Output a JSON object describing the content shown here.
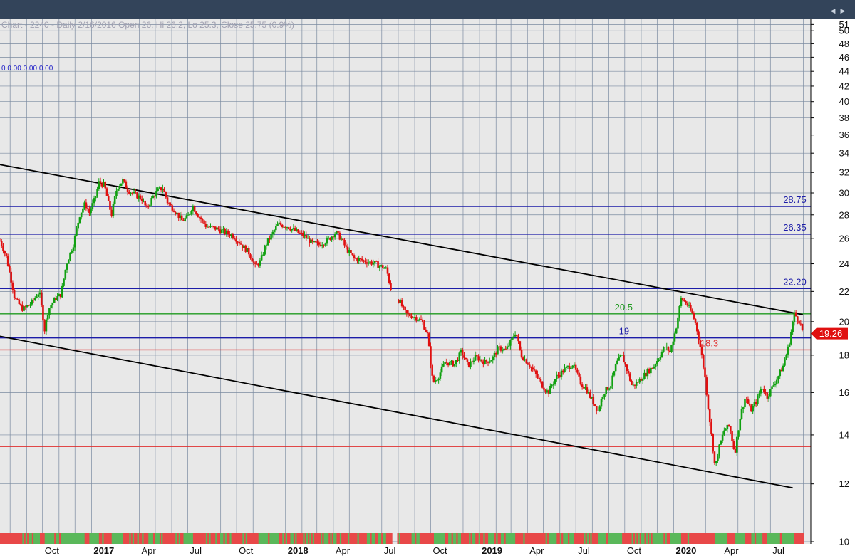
{
  "header": {
    "chart_info": "Chart - 2240 - Daily 2/16/2016 Open 26, Hi 26.2, Lo 25.3, Close 25.75 (0.9%)",
    "study_values": "0.0.00.0.00.0.00"
  },
  "colors": {
    "topbar": "#33445a",
    "plot_bg": "#e8e8e8",
    "grid": "#7a8aa0",
    "up": "#10a010",
    "down": "#e01010",
    "level_blue": "#1c1ca8",
    "level_green": "#1f9a1f",
    "level_red": "#e03030",
    "trend": "#000000"
  },
  "chart_data": {
    "type": "candlestick",
    "title": "",
    "y_scale": "log",
    "ylim": [
      10,
      51.5
    ],
    "y_ticks": [
      10,
      12,
      14,
      16,
      18,
      20,
      22,
      24,
      26,
      28,
      30,
      32,
      34,
      36,
      38,
      40,
      42,
      44,
      46,
      48,
      50,
      51
    ],
    "x_ticks": [
      {
        "label": "Oct",
        "date": "2016-10-01",
        "bold": false
      },
      {
        "label": "2017",
        "date": "2017-01-01",
        "bold": true
      },
      {
        "label": "Apr",
        "date": "2017-04-01",
        "bold": false
      },
      {
        "label": "Jul",
        "date": "2017-07-01",
        "bold": false
      },
      {
        "label": "Oct",
        "date": "2017-10-01",
        "bold": false
      },
      {
        "label": "2018",
        "date": "2018-01-01",
        "bold": true
      },
      {
        "label": "Apr",
        "date": "2018-04-01",
        "bold": false
      },
      {
        "label": "Jul",
        "date": "2018-07-01",
        "bold": false
      },
      {
        "label": "Oct",
        "date": "2018-10-01",
        "bold": false
      },
      {
        "label": "2019",
        "date": "2019-01-01",
        "bold": true
      },
      {
        "label": "Apr",
        "date": "2019-04-01",
        "bold": false
      },
      {
        "label": "Jul",
        "date": "2019-07-01",
        "bold": false
      },
      {
        "label": "Oct",
        "date": "2019-10-01",
        "bold": false
      },
      {
        "label": "2020",
        "date": "2020-01-01",
        "bold": true
      },
      {
        "label": "Apr",
        "date": "2020-04-01",
        "bold": false
      },
      {
        "label": "Jul",
        "date": "2020-07-01",
        "bold": false
      }
    ],
    "x_range": [
      "2016-07-13",
      "2020-09-15"
    ],
    "last_price": {
      "value": 19.26,
      "label": "19.26"
    },
    "levels": [
      {
        "value": 28.75,
        "label": "28.75",
        "color": "#1c1ca8",
        "label_date": "2020-07-25"
      },
      {
        "value": 26.35,
        "label": "26.35",
        "color": "#1c1ca8",
        "label_date": "2020-07-25"
      },
      {
        "value": 22.2,
        "label": "22.20",
        "color": "#1c1ca8",
        "label_date": "2020-07-25"
      },
      {
        "value": 20.5,
        "label": "20.5",
        "color": "#1f9a1f",
        "label_date": "2019-09-12"
      },
      {
        "value": 19.0,
        "label": "19",
        "color": "#1c1ca8",
        "label_date": "2019-09-20"
      },
      {
        "value": 18.3,
        "label": "18.3",
        "color": "#e03030",
        "label_date": "2020-02-20"
      },
      {
        "value": 13.5,
        "label": "",
        "color": "#e03030",
        "label_date": "2020-07-25"
      }
    ],
    "trendlines": [
      {
        "name": "upper",
        "from": {
          "date": "2016-07-13",
          "value": 32.8
        },
        "to": {
          "date": "2020-08-31",
          "value": 20.45
        }
      },
      {
        "name": "lower",
        "from": {
          "date": "2016-07-13",
          "value": 19.1
        },
        "to": {
          "date": "2020-08-12",
          "value": 11.85
        }
      }
    ],
    "price_path": [
      [
        "2016-07-13",
        25.8
      ],
      [
        "2016-07-25",
        24.5
      ],
      [
        "2016-08-10",
        21.5
      ],
      [
        "2016-08-25",
        20.8
      ],
      [
        "2016-09-10",
        21.2
      ],
      [
        "2016-09-25",
        22.0
      ],
      [
        "2016-10-05",
        19.5
      ],
      [
        "2016-10-12",
        20.8
      ],
      [
        "2016-10-25",
        21.5
      ],
      [
        "2016-11-05",
        21.8
      ],
      [
        "2016-11-15",
        24.0
      ],
      [
        "2016-11-28",
        25.5
      ],
      [
        "2016-12-10",
        28.0
      ],
      [
        "2016-12-20",
        29.0
      ],
      [
        "2016-12-28",
        28.2
      ],
      [
        "2017-01-08",
        29.5
      ],
      [
        "2017-01-15",
        31.0
      ],
      [
        "2017-01-25",
        30.8
      ],
      [
        "2017-02-02",
        29.0
      ],
      [
        "2017-02-08",
        28.0
      ],
      [
        "2017-02-18",
        30.5
      ],
      [
        "2017-03-01",
        31.2
      ],
      [
        "2017-03-10",
        30.3
      ],
      [
        "2017-03-25",
        29.8
      ],
      [
        "2017-04-05",
        29.5
      ],
      [
        "2017-04-15",
        28.5
      ],
      [
        "2017-04-25",
        29.5
      ],
      [
        "2017-05-05",
        30.2
      ],
      [
        "2017-05-15",
        30.5
      ],
      [
        "2017-05-25",
        29.0
      ],
      [
        "2017-06-05",
        28.5
      ],
      [
        "2017-06-20",
        27.5
      ],
      [
        "2017-07-01",
        27.8
      ],
      [
        "2017-07-10",
        28.8
      ],
      [
        "2017-07-20",
        28.0
      ],
      [
        "2017-08-05",
        27.0
      ],
      [
        "2017-08-25",
        26.8
      ],
      [
        "2017-09-10",
        26.5
      ],
      [
        "2017-09-25",
        26.2
      ],
      [
        "2017-10-10",
        25.5
      ],
      [
        "2017-10-25",
        24.8
      ],
      [
        "2017-11-05",
        23.8
      ],
      [
        "2017-11-15",
        24.2
      ],
      [
        "2017-11-25",
        25.5
      ],
      [
        "2017-12-05",
        26.2
      ],
      [
        "2017-12-18",
        27.2
      ],
      [
        "2018-01-05",
        27.0
      ],
      [
        "2018-01-20",
        26.6
      ],
      [
        "2018-02-05",
        26.2
      ],
      [
        "2018-02-20",
        25.6
      ],
      [
        "2018-03-05",
        25.5
      ],
      [
        "2018-03-20",
        25.8
      ],
      [
        "2018-04-05",
        26.5
      ],
      [
        "2018-04-15",
        26.0
      ],
      [
        "2018-04-25",
        25.2
      ],
      [
        "2018-05-10",
        24.4
      ],
      [
        "2018-06-01",
        24.2
      ],
      [
        "2018-06-20",
        24.0
      ],
      [
        "2018-07-10",
        23.6
      ],
      [
        "2018-07-20",
        21.8
      ],
      [
        "2018-08-01",
        21.5
      ],
      [
        "2018-08-15",
        20.5
      ],
      [
        "2018-09-01",
        20.3
      ],
      [
        "2018-09-15",
        20.0
      ],
      [
        "2018-09-25",
        19.2
      ],
      [
        "2018-10-05",
        16.5
      ],
      [
        "2018-10-15",
        16.8
      ],
      [
        "2018-10-28",
        17.6
      ],
      [
        "2018-11-15",
        17.5
      ],
      [
        "2018-11-28",
        18.2
      ],
      [
        "2018-12-10",
        17.4
      ],
      [
        "2018-12-25",
        17.9
      ],
      [
        "2019-01-10",
        17.6
      ],
      [
        "2019-01-25",
        17.8
      ],
      [
        "2019-02-05",
        18.4
      ],
      [
        "2019-02-20",
        18.3
      ],
      [
        "2019-03-01",
        18.8
      ],
      [
        "2019-03-10",
        19.4
      ],
      [
        "2019-03-20",
        18.0
      ],
      [
        "2019-04-01",
        17.6
      ],
      [
        "2019-04-15",
        17.0
      ],
      [
        "2019-04-28",
        16.4
      ],
      [
        "2019-05-10",
        16.0
      ],
      [
        "2019-05-25",
        16.8
      ],
      [
        "2019-06-10",
        17.2
      ],
      [
        "2019-06-25",
        17.5
      ],
      [
        "2019-07-10",
        16.5
      ],
      [
        "2019-07-20",
        16.2
      ],
      [
        "2019-08-01",
        15.6
      ],
      [
        "2019-08-12",
        15.1
      ],
      [
        "2019-08-22",
        16.0
      ],
      [
        "2019-09-05",
        16.4
      ],
      [
        "2019-09-15",
        17.5
      ],
      [
        "2019-09-25",
        18.0
      ],
      [
        "2019-10-05",
        17.2
      ],
      [
        "2019-10-15",
        16.3
      ],
      [
        "2019-10-28",
        16.6
      ],
      [
        "2019-11-10",
        17.0
      ],
      [
        "2019-11-25",
        17.4
      ],
      [
        "2019-12-05",
        17.9
      ],
      [
        "2019-12-15",
        18.5
      ],
      [
        "2019-12-25",
        18.2
      ],
      [
        "2020-01-05",
        19.5
      ],
      [
        "2020-01-15",
        21.5
      ],
      [
        "2020-01-25",
        21.2
      ],
      [
        "2020-02-05",
        20.5
      ],
      [
        "2020-02-12",
        19.8
      ],
      [
        "2020-02-20",
        18.5
      ],
      [
        "2020-02-28",
        17.0
      ],
      [
        "2020-03-05",
        15.5
      ],
      [
        "2020-03-12",
        14.0
      ],
      [
        "2020-03-19",
        12.6
      ],
      [
        "2020-03-26",
        13.4
      ],
      [
        "2020-04-05",
        14.2
      ],
      [
        "2020-04-15",
        14.4
      ],
      [
        "2020-04-25",
        13.2
      ],
      [
        "2020-05-05",
        14.8
      ],
      [
        "2020-05-15",
        15.8
      ],
      [
        "2020-05-25",
        15.1
      ],
      [
        "2020-06-05",
        15.6
      ],
      [
        "2020-06-15",
        16.3
      ],
      [
        "2020-06-25",
        15.8
      ],
      [
        "2020-07-05",
        16.3
      ],
      [
        "2020-07-15",
        16.8
      ],
      [
        "2020-07-25",
        17.4
      ],
      [
        "2020-08-05",
        18.6
      ],
      [
        "2020-08-15",
        20.5
      ],
      [
        "2020-08-25",
        20.0
      ],
      [
        "2020-09-01",
        19.26
      ]
    ],
    "gaps": [
      [
        "2018-07-20",
        "2018-08-01"
      ]
    ],
    "grid": true,
    "legend": "none"
  }
}
